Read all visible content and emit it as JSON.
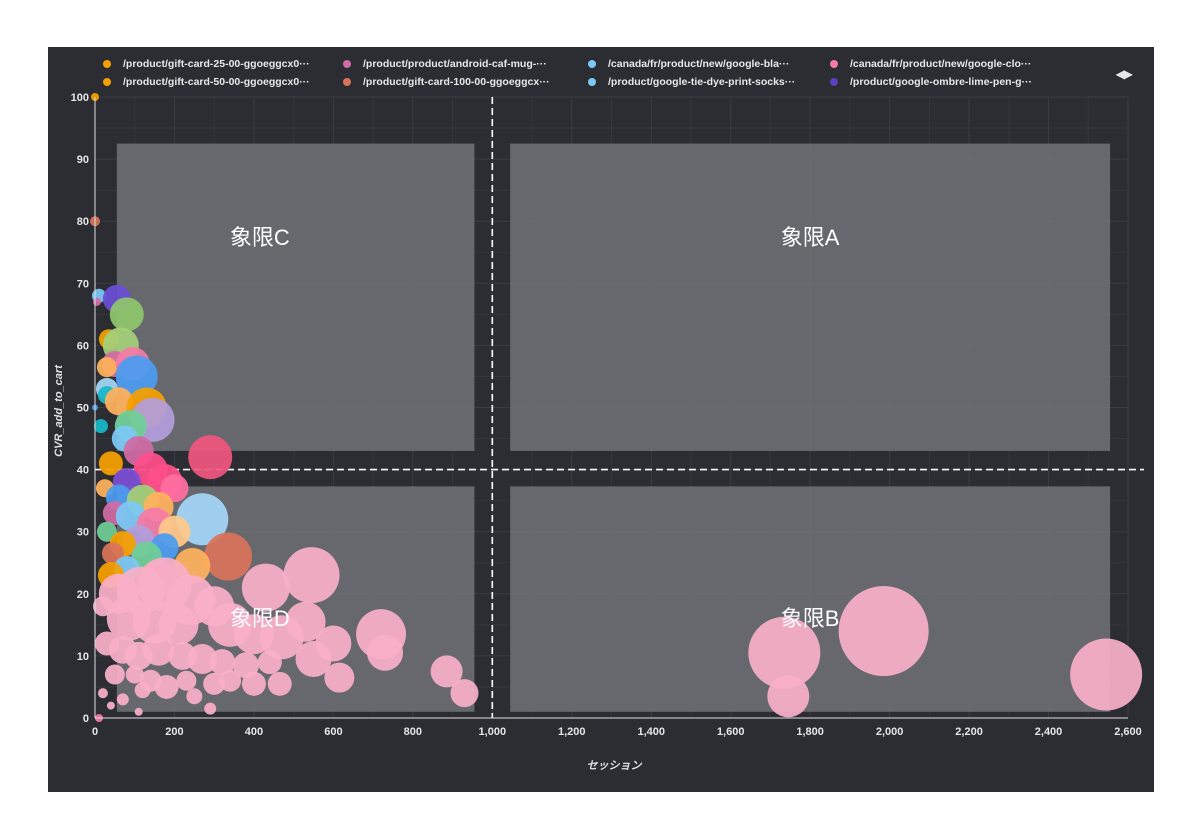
{
  "legend": {
    "items": [
      {
        "label": "/product/gift-card-25-00-ggoeggcx0···",
        "color": "#f5a000"
      },
      {
        "label": "/product/product/android-caf-mug-···",
        "color": "#d16ba5"
      },
      {
        "label": "/canada/fr/product/new/google-bla···",
        "color": "#7cc8f5"
      },
      {
        "label": "/canada/fr/product/new/google-clo···",
        "color": "#f47ba8"
      },
      {
        "label": "/product/gift-card-50-00-ggoeggcx0···",
        "color": "#f5a000"
      },
      {
        "label": "/product/gift-card-100-00-ggoeggcx···",
        "color": "#d9735a"
      },
      {
        "label": "/product/google-tie-dye-print-socks···",
        "color": "#7cc8f5"
      },
      {
        "label": "/product/google-ombre-lime-pen-g···",
        "color": "#5b3fbf"
      }
    ],
    "nav": "◀▶"
  },
  "chart_data": {
    "type": "scatter",
    "xlabel": "セッション",
    "ylabel": "CVR_add_to_cart",
    "xlim": [
      0,
      2600
    ],
    "ylim": [
      0,
      100
    ],
    "xticks": [
      0,
      200,
      400,
      600,
      800,
      1000,
      1200,
      1400,
      1600,
      1800,
      2000,
      2200,
      2400,
      2600
    ],
    "yticks": [
      0,
      10,
      20,
      30,
      40,
      50,
      60,
      70,
      80,
      90,
      100
    ],
    "grid": true,
    "legend_position": "top",
    "divider_x": 1000,
    "divider_y": 40,
    "quadrants": [
      {
        "label": "象限C",
        "x": [
          55,
          955
        ],
        "y": [
          43,
          92.5
        ]
      },
      {
        "label": "象限A",
        "x": [
          1045,
          2555
        ],
        "y": [
          43,
          92.5
        ]
      },
      {
        "label": "象限D",
        "x": [
          55,
          955
        ],
        "y": [
          1,
          37.3
        ]
      },
      {
        "label": "象限B",
        "x": [
          1045,
          2555
        ],
        "y": [
          1,
          37.3
        ]
      }
    ],
    "points": [
      {
        "x": 0,
        "y": 100,
        "r": 4,
        "color": "#f5a000"
      },
      {
        "x": 0,
        "y": 80,
        "r": 5,
        "color": "#d9735a"
      },
      {
        "x": 10,
        "y": 68,
        "r": 7,
        "color": "#7cc8f5"
      },
      {
        "x": 5,
        "y": 67,
        "r": 4,
        "color": "#d16ba5"
      },
      {
        "x": 55,
        "y": 67.5,
        "r": 14,
        "color": "#6a4fd6"
      },
      {
        "x": 80,
        "y": 65,
        "r": 17,
        "color": "#8fc66a"
      },
      {
        "x": 35,
        "y": 61,
        "r": 10,
        "color": "#f5a000"
      },
      {
        "x": 65,
        "y": 60,
        "r": 18,
        "color": "#a4d07a"
      },
      {
        "x": 50,
        "y": 57,
        "r": 13,
        "color": "#d16ba5"
      },
      {
        "x": 30,
        "y": 56.5,
        "r": 10,
        "color": "#ffb25c"
      },
      {
        "x": 95,
        "y": 57,
        "r": 17,
        "color": "#f47ba8"
      },
      {
        "x": 105,
        "y": 55,
        "r": 21,
        "color": "#4b9cf0"
      },
      {
        "x": 30,
        "y": 53,
        "r": 11,
        "color": "#a5d6f7"
      },
      {
        "x": 30,
        "y": 52,
        "r": 9,
        "color": "#16b8c8"
      },
      {
        "x": 60,
        "y": 51,
        "r": 14,
        "color": "#ffb25c"
      },
      {
        "x": 130,
        "y": 50,
        "r": 20,
        "color": "#f5a000"
      },
      {
        "x": 145,
        "y": 48,
        "r": 22,
        "color": "#b39ddb"
      },
      {
        "x": 0,
        "y": 50,
        "r": 3,
        "color": "#4b9cf0"
      },
      {
        "x": 90,
        "y": 47,
        "r": 16,
        "color": "#6fcf97"
      },
      {
        "x": 15,
        "y": 47,
        "r": 7,
        "color": "#16b8c8"
      },
      {
        "x": 75,
        "y": 45,
        "r": 13,
        "color": "#7cc8f5"
      },
      {
        "x": 110,
        "y": 43,
        "r": 15,
        "color": "#d16ba5"
      },
      {
        "x": 40,
        "y": 41,
        "r": 12,
        "color": "#f5a000"
      },
      {
        "x": 140,
        "y": 40,
        "r": 17,
        "color": "#ff4f8b"
      },
      {
        "x": 290,
        "y": 42,
        "r": 22,
        "color": "#f0567f"
      },
      {
        "x": 175,
        "y": 38,
        "r": 18,
        "color": "#ff4f8b"
      },
      {
        "x": 80,
        "y": 38,
        "r": 14,
        "color": "#7c4fd6"
      },
      {
        "x": 200,
        "y": 37,
        "r": 14,
        "color": "#ff6fa0"
      },
      {
        "x": 25,
        "y": 37,
        "r": 9,
        "color": "#ffb25c"
      },
      {
        "x": 60,
        "y": 35.5,
        "r": 13,
        "color": "#4b9cf0"
      },
      {
        "x": 120,
        "y": 35,
        "r": 16,
        "color": "#a4d07a"
      },
      {
        "x": 160,
        "y": 34,
        "r": 15,
        "color": "#ffb25c"
      },
      {
        "x": 50,
        "y": 33,
        "r": 12,
        "color": "#d16ba5"
      },
      {
        "x": 90,
        "y": 32.5,
        "r": 15,
        "color": "#7cc8f5"
      },
      {
        "x": 270,
        "y": 32,
        "r": 26,
        "color": "#a5d6f7"
      },
      {
        "x": 150,
        "y": 31,
        "r": 18,
        "color": "#f47ba8"
      },
      {
        "x": 200,
        "y": 30,
        "r": 16,
        "color": "#ffc98a"
      },
      {
        "x": 30,
        "y": 30,
        "r": 10,
        "color": "#6fcf97"
      },
      {
        "x": 110,
        "y": 28.5,
        "r": 16,
        "color": "#b39ddb"
      },
      {
        "x": 70,
        "y": 28,
        "r": 13,
        "color": "#f5a000"
      },
      {
        "x": 175,
        "y": 27.5,
        "r": 14,
        "color": "#4b9cf0"
      },
      {
        "x": 45,
        "y": 26.5,
        "r": 11,
        "color": "#d9735a"
      },
      {
        "x": 130,
        "y": 26,
        "r": 15,
        "color": "#6fcf97"
      },
      {
        "x": 335,
        "y": 26,
        "r": 24,
        "color": "#d9735a"
      },
      {
        "x": 245,
        "y": 24.5,
        "r": 18,
        "color": "#ffb25c"
      },
      {
        "x": 80,
        "y": 24,
        "r": 13,
        "color": "#7cc8f5"
      },
      {
        "x": 40,
        "y": 23,
        "r": 13,
        "color": "#f5a000"
      },
      {
        "x": 160,
        "y": 22.5,
        "r": 18,
        "color": "#f47ba8"
      },
      {
        "x": 545,
        "y": 23,
        "r": 28,
        "color": "#f9afc7"
      },
      {
        "x": 430,
        "y": 21,
        "r": 24,
        "color": "#f9afc7"
      },
      {
        "x": 60,
        "y": 20,
        "r": 20,
        "color": "#f9afc7"
      },
      {
        "x": 115,
        "y": 20.5,
        "r": 24,
        "color": "#f9afc7"
      },
      {
        "x": 175,
        "y": 21.5,
        "r": 27,
        "color": "#f9afc7"
      },
      {
        "x": 240,
        "y": 19,
        "r": 25,
        "color": "#f9afc7"
      },
      {
        "x": 300,
        "y": 18,
        "r": 20,
        "color": "#f9afc7"
      },
      {
        "x": 20,
        "y": 18,
        "r": 10,
        "color": "#f9afc7"
      },
      {
        "x": 85,
        "y": 16,
        "r": 22,
        "color": "#f9afc7"
      },
      {
        "x": 150,
        "y": 15.5,
        "r": 22,
        "color": "#f9afc7"
      },
      {
        "x": 210,
        "y": 15,
        "r": 20,
        "color": "#f9afc7"
      },
      {
        "x": 340,
        "y": 15,
        "r": 22,
        "color": "#f9afc7"
      },
      {
        "x": 400,
        "y": 13.5,
        "r": 20,
        "color": "#f9afc7"
      },
      {
        "x": 470,
        "y": 13,
        "r": 22,
        "color": "#f9afc7"
      },
      {
        "x": 530,
        "y": 15.5,
        "r": 20,
        "color": "#f9afc7"
      },
      {
        "x": 600,
        "y": 12,
        "r": 18,
        "color": "#f9afc7"
      },
      {
        "x": 720,
        "y": 13.5,
        "r": 25,
        "color": "#f9afc7"
      },
      {
        "x": 730,
        "y": 10.5,
        "r": 18,
        "color": "#f9afc7"
      },
      {
        "x": 550,
        "y": 9.5,
        "r": 18,
        "color": "#f9afc7"
      },
      {
        "x": 615,
        "y": 6.5,
        "r": 15,
        "color": "#f9afc7"
      },
      {
        "x": 30,
        "y": 12,
        "r": 12,
        "color": "#f9afc7"
      },
      {
        "x": 70,
        "y": 11,
        "r": 14,
        "color": "#f9afc7"
      },
      {
        "x": 110,
        "y": 10,
        "r": 14,
        "color": "#f9afc7"
      },
      {
        "x": 160,
        "y": 11,
        "r": 16,
        "color": "#f9afc7"
      },
      {
        "x": 220,
        "y": 10,
        "r": 14,
        "color": "#f9afc7"
      },
      {
        "x": 270,
        "y": 9.5,
        "r": 15,
        "color": "#f9afc7"
      },
      {
        "x": 320,
        "y": 9,
        "r": 13,
        "color": "#f9afc7"
      },
      {
        "x": 380,
        "y": 8.5,
        "r": 13,
        "color": "#f9afc7"
      },
      {
        "x": 440,
        "y": 9,
        "r": 12,
        "color": "#f9afc7"
      },
      {
        "x": 50,
        "y": 7,
        "r": 10,
        "color": "#f9afc7"
      },
      {
        "x": 100,
        "y": 7,
        "r": 9,
        "color": "#f9afc7"
      },
      {
        "x": 140,
        "y": 6,
        "r": 11,
        "color": "#f9afc7"
      },
      {
        "x": 180,
        "y": 5,
        "r": 12,
        "color": "#f9afc7"
      },
      {
        "x": 230,
        "y": 6,
        "r": 10,
        "color": "#f9afc7"
      },
      {
        "x": 300,
        "y": 5.5,
        "r": 11,
        "color": "#f9afc7"
      },
      {
        "x": 340,
        "y": 6,
        "r": 11,
        "color": "#f9afc7"
      },
      {
        "x": 400,
        "y": 5.5,
        "r": 12,
        "color": "#f9afc7"
      },
      {
        "x": 465,
        "y": 5.5,
        "r": 12,
        "color": "#f9afc7"
      },
      {
        "x": 120,
        "y": 4.5,
        "r": 8,
        "color": "#f9afc7"
      },
      {
        "x": 250,
        "y": 3.5,
        "r": 8,
        "color": "#f9afc7"
      },
      {
        "x": 70,
        "y": 3,
        "r": 6,
        "color": "#f9afc7"
      },
      {
        "x": 20,
        "y": 4,
        "r": 5,
        "color": "#f9afc7"
      },
      {
        "x": 40,
        "y": 2,
        "r": 4,
        "color": "#f9afc7"
      },
      {
        "x": 110,
        "y": 1,
        "r": 4,
        "color": "#f9afc7"
      },
      {
        "x": 290,
        "y": 1.5,
        "r": 6,
        "color": "#f9afc7"
      },
      {
        "x": 10,
        "y": 0,
        "r": 4,
        "color": "#f47ba8"
      },
      {
        "x": 885,
        "y": 7.5,
        "r": 16,
        "color": "#f9afc7"
      },
      {
        "x": 930,
        "y": 4,
        "r": 14,
        "color": "#f9afc7"
      },
      {
        "x": 1735,
        "y": 10.5,
        "r": 36,
        "color": "#f9afc7"
      },
      {
        "x": 1745,
        "y": 3.5,
        "r": 21,
        "color": "#f9afc7"
      },
      {
        "x": 1985,
        "y": 14,
        "r": 45,
        "color": "#f9afc7"
      },
      {
        "x": 2545,
        "y": 7,
        "r": 36,
        "color": "#f9afc7"
      }
    ]
  }
}
